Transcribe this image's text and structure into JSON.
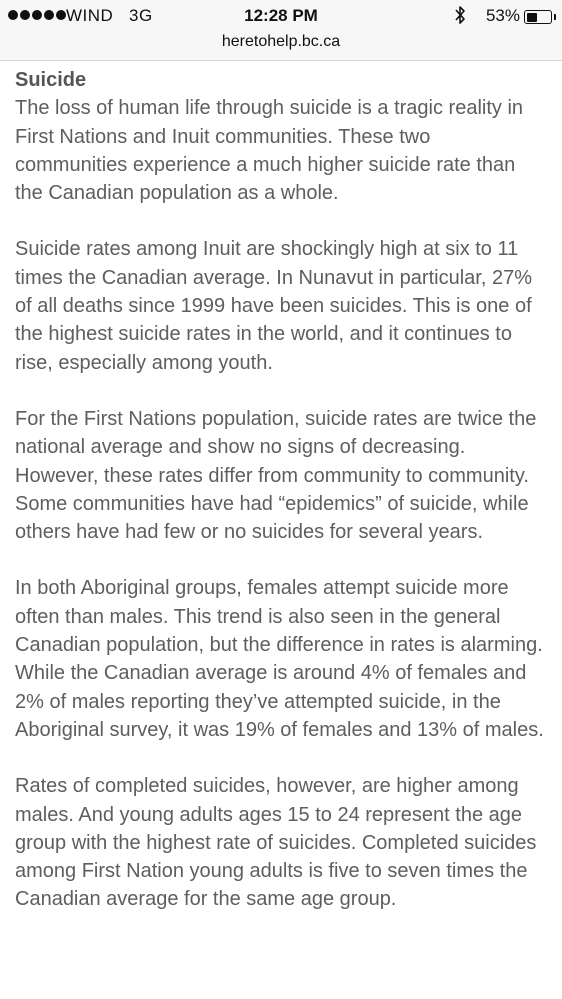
{
  "status_bar": {
    "carrier": "WIND",
    "network": "3G",
    "time": "12:28 PM",
    "battery_percent": "53%",
    "battery_level": 0.53,
    "signal_icon": "signal-dots-icon",
    "bluetooth_icon": "bluetooth-icon",
    "battery_icon": "battery-icon"
  },
  "address_bar": {
    "url": "heretohelp.bc.ca"
  },
  "article": {
    "heading": "Suicide",
    "paragraphs": [
      "The loss of human life through suicide is a tragic reality in First Nations and Inuit communities. These two communities experience a much higher suicide rate than the Canadian population as a whole.",
      "Suicide rates among Inuit are shockingly high at six to 11 times the Canadian average. In Nunavut in particular, 27% of all deaths since 1999 have been suicides. This is one of the highest suicide rates in the world, and it continues to rise, especially among youth.",
      "For the First Nations population, suicide rates are twice the national average and show no signs of decreasing. However, these rates differ from community to community. Some communities have had “epidemics” of suicide, while others have had few or no suicides for several years.",
      "In both Aboriginal groups, females attempt suicide more often than males. This trend is also seen in the general Canadian population, but the difference in rates is alarming. While the Canadian average is around 4% of females and 2% of males reporting they’ve attempted suicide, in the Aboriginal survey, it was 19% of females and 13% of males.",
      "Rates of completed suicides, however, are higher among males. And young adults ages 15 to 24 represent the age group with the highest rate of suicides. Completed suicides among First Nation young adults is five to seven times the Canadian average for the same age group."
    ]
  }
}
